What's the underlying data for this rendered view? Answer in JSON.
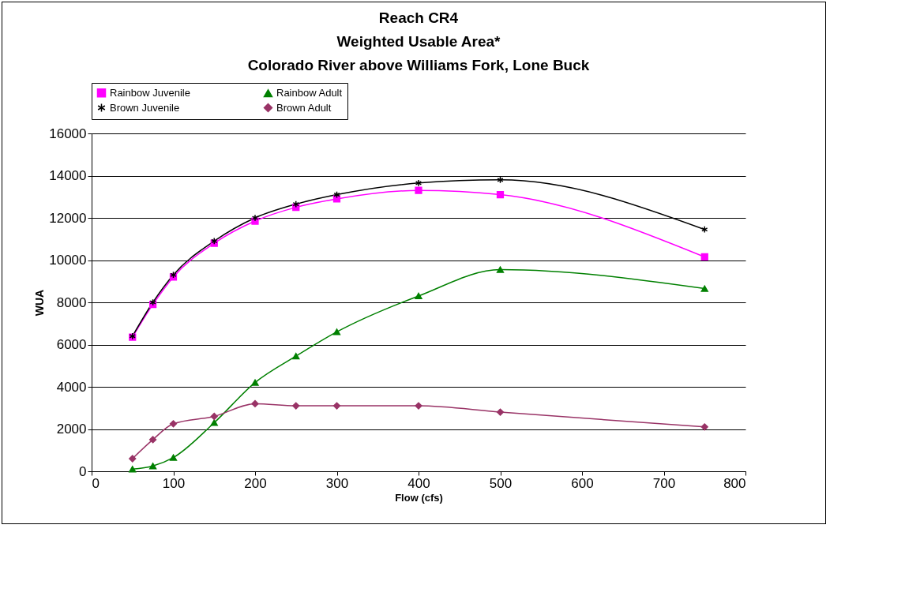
{
  "chart_data": {
    "type": "line",
    "title": "Reach CR4\nWeighted Usable Area*\nColorado River above Williams Fork,  Lone Buck",
    "xlabel": "Flow (cfs)",
    "ylabel": "WUA",
    "x": [
      50,
      75,
      100,
      150,
      200,
      250,
      300,
      400,
      500,
      750
    ],
    "series": [
      {
        "name": "Rainbow Juvenile",
        "color": "#ff00ff",
        "marker": "square",
        "values": [
          6350,
          7900,
          9200,
          10800,
          11850,
          12500,
          12900,
          13300,
          13100,
          10150
        ]
      },
      {
        "name": "Rainbow Adult",
        "color": "#008000",
        "marker": "triangle",
        "values": [
          100,
          250,
          650,
          2300,
          4200,
          5450,
          6600,
          8300,
          9550,
          8650
        ]
      },
      {
        "name": "Brown  Juvenile",
        "color": "#000000",
        "marker": "cross",
        "values": [
          6400,
          8000,
          9300,
          10900,
          12000,
          12650,
          13100,
          13650,
          13800,
          11450
        ]
      },
      {
        "name": "Brown Adult",
        "color": "#993366",
        "marker": "diamond",
        "values": [
          600,
          1500,
          2250,
          2600,
          3200,
          3100,
          3100,
          3100,
          2800,
          2100
        ]
      }
    ],
    "xlim": [
      0,
      800
    ],
    "xticks": [
      0,
      100,
      200,
      300,
      400,
      500,
      600,
      700,
      800
    ],
    "ylim": [
      0,
      16000
    ],
    "yticks": [
      0,
      2000,
      4000,
      6000,
      8000,
      10000,
      12000,
      14000,
      16000
    ],
    "grid": "y",
    "legend": "top"
  }
}
